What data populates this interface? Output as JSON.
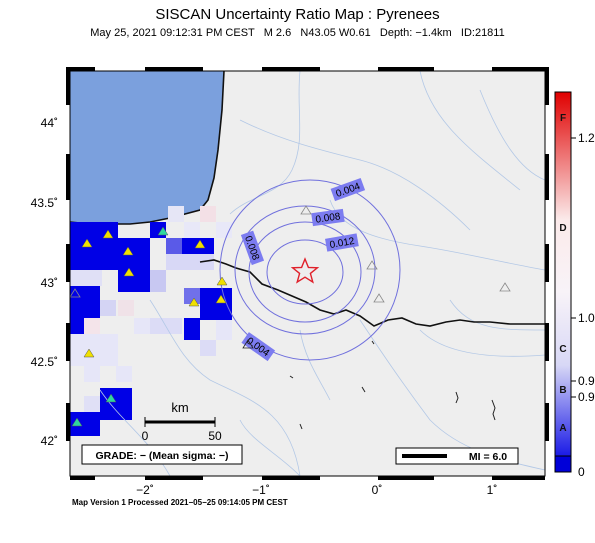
{
  "title": "SISCAN Uncertainty Ratio Map : Pyrenees",
  "subtitle": "May 25, 2021 09:12:31 PM CEST   M 2.6   N43.05 W0.61   Depth: −1.4km   ID:21811",
  "footer": "Map Version 1 Processed 2021−05−25 09:14:05 PM CEST",
  "lat_ticks": [
    "44˚",
    "43.5˚",
    "43˚",
    "42.5˚",
    "42˚"
  ],
  "lon_ticks": [
    "−2˚",
    "−1˚",
    "0˚",
    "1˚"
  ],
  "contours": {
    "labels": [
      "0.004",
      "0.008",
      "0.012",
      "0.008",
      "0.004"
    ]
  },
  "scale_bar": {
    "unit": "km",
    "min_label": "0",
    "max_label": "50"
  },
  "grade_box": "GRADE: − (Mean sigma: −)",
  "legend_box": "MI = 6.0",
  "colorbar": {
    "letters": [
      "F",
      "D",
      "C",
      "B",
      "A"
    ],
    "values": [
      "1.2",
      "1.0",
      "0.9",
      "0.9",
      "0"
    ]
  },
  "colors": {
    "ocean": "#7ba0dd",
    "land": "#eeeeee",
    "cell_dark": "#0000e6",
    "contour": "#7070dd",
    "epicenter": "#e0202a"
  },
  "icons": {
    "epicenter": "star-icon",
    "station_active": "triangle-yellow-icon",
    "station_other": "triangle-green-icon",
    "station_inactive": "triangle-gray-icon"
  }
}
